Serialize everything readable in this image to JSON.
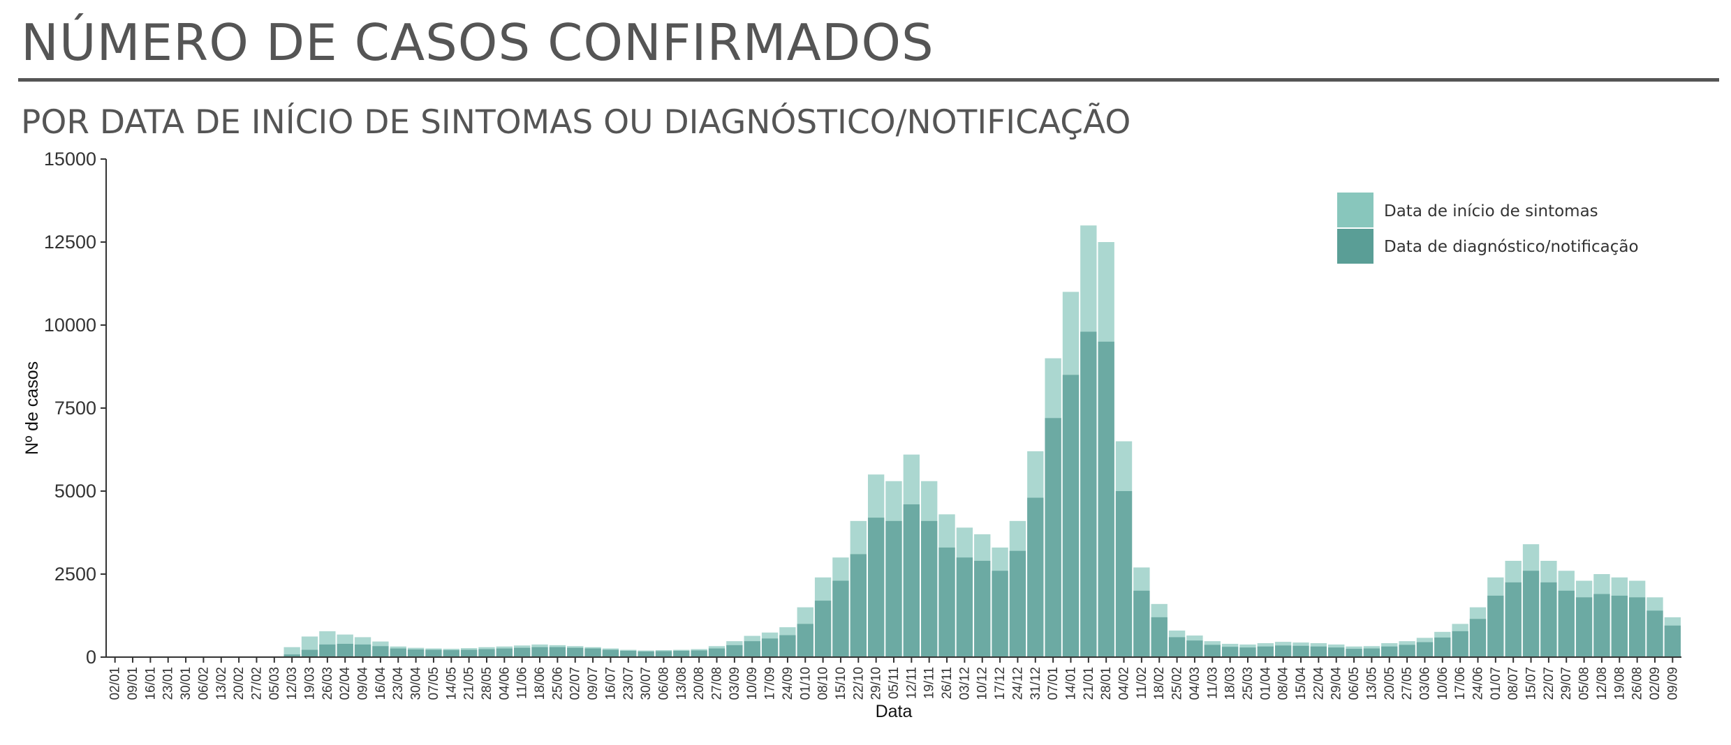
{
  "header": {
    "title": "NÚMERO DE CASOS CONFIRMADOS",
    "subtitle": "POR DATA DE INÍCIO DE SINTOMAS OU DIAGNÓSTICO/NOTIFICAÇÃO"
  },
  "chart_data": {
    "type": "bar",
    "xlabel": "Data",
    "ylabel": "Nº de casos",
    "ylim": [
      0,
      15000
    ],
    "y_ticks": [
      0,
      2500,
      5000,
      7500,
      10000,
      12500,
      15000
    ],
    "legend_position": "top-right",
    "grid": false,
    "categories": [
      "02/01",
      "09/01",
      "16/01",
      "23/01",
      "30/01",
      "06/02",
      "13/02",
      "20/02",
      "27/02",
      "05/03",
      "12/03",
      "19/03",
      "26/03",
      "02/04",
      "09/04",
      "16/04",
      "23/04",
      "30/04",
      "07/05",
      "14/05",
      "21/05",
      "28/05",
      "04/06",
      "11/06",
      "18/06",
      "25/06",
      "02/07",
      "09/07",
      "16/07",
      "23/07",
      "30/07",
      "06/08",
      "13/08",
      "20/08",
      "27/08",
      "03/09",
      "10/09",
      "17/09",
      "24/09",
      "01/10",
      "08/10",
      "15/10",
      "22/10",
      "29/10",
      "05/11",
      "12/11",
      "19/11",
      "26/11",
      "03/12",
      "10/12",
      "17/12",
      "24/12",
      "31/12",
      "07/01",
      "14/01",
      "21/01",
      "28/01",
      "04/02",
      "11/02",
      "18/02",
      "25/02",
      "04/03",
      "11/03",
      "18/03",
      "25/03",
      "01/04",
      "08/04",
      "15/04",
      "22/04",
      "29/04",
      "06/05",
      "13/05",
      "20/05",
      "27/05",
      "03/06",
      "10/06",
      "17/06",
      "24/06",
      "01/07",
      "08/07",
      "15/07",
      "22/07",
      "29/07",
      "05/08",
      "12/08",
      "19/08",
      "26/08",
      "02/09",
      "09/09"
    ],
    "series": [
      {
        "name": "Data de início de sintomas",
        "color": "#88c6bc",
        "values": [
          0,
          0,
          0,
          0,
          0,
          0,
          0,
          0,
          0,
          20,
          300,
          620,
          780,
          680,
          600,
          470,
          320,
          280,
          260,
          250,
          270,
          300,
          320,
          350,
          380,
          360,
          330,
          300,
          260,
          220,
          200,
          210,
          220,
          240,
          330,
          480,
          640,
          740,
          900,
          1500,
          2400,
          3000,
          4100,
          5500,
          5300,
          6100,
          5300,
          4300,
          3900,
          3700,
          3300,
          4100,
          6200,
          9000,
          11000,
          13000,
          12500,
          6500,
          2700,
          1600,
          800,
          650,
          480,
          400,
          380,
          420,
          460,
          440,
          420,
          380,
          320,
          330,
          420,
          480,
          580,
          760,
          1000,
          1500,
          2400,
          2900,
          3400,
          2900,
          2600,
          2300,
          2500,
          2400,
          2300,
          1800,
          1200
        ]
      },
      {
        "name": "Data de diagnóstico/notificação",
        "color": "#5a9e96",
        "values": [
          0,
          0,
          0,
          0,
          0,
          0,
          0,
          0,
          0,
          5,
          80,
          220,
          380,
          400,
          380,
          330,
          260,
          230,
          220,
          210,
          220,
          240,
          260,
          280,
          300,
          300,
          280,
          260,
          220,
          190,
          170,
          180,
          190,
          200,
          260,
          360,
          480,
          560,
          660,
          1000,
          1700,
          2300,
          3100,
          4200,
          4100,
          4600,
          4100,
          3300,
          3000,
          2900,
          2600,
          3200,
          4800,
          7200,
          8500,
          9800,
          9500,
          5000,
          2000,
          1200,
          600,
          500,
          370,
          310,
          290,
          320,
          350,
          340,
          320,
          290,
          250,
          260,
          320,
          370,
          450,
          590,
          780,
          1150,
          1850,
          2250,
          2600,
          2250,
          2000,
          1800,
          1900,
          1850,
          1800,
          1400,
          950
        ]
      }
    ]
  }
}
